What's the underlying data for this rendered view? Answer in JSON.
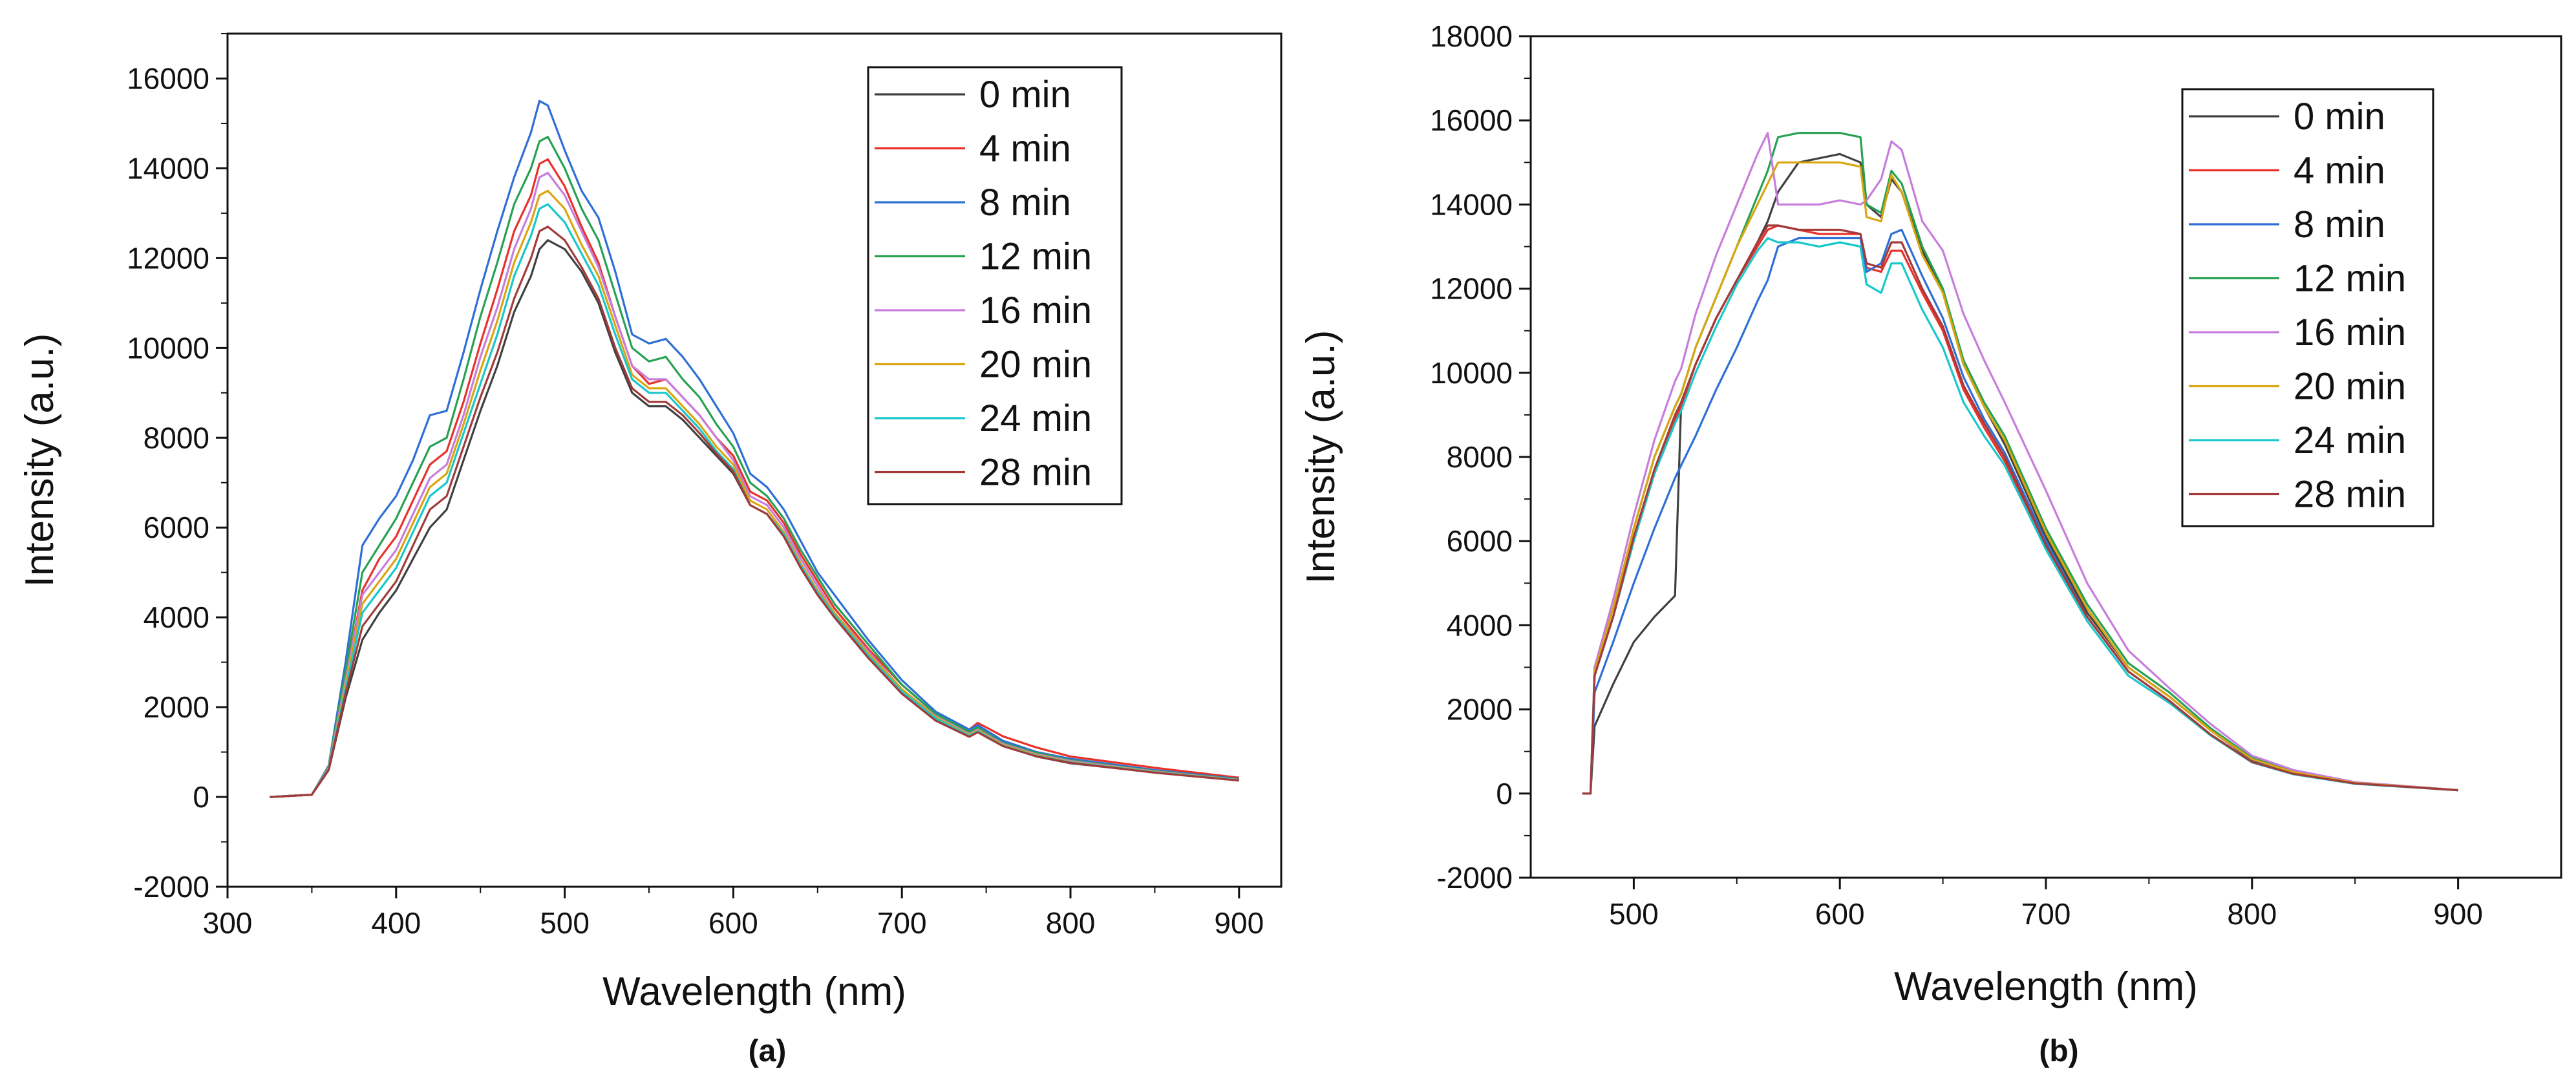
{
  "chart_data": [
    {
      "type": "line",
      "panel_label": "(a)",
      "xlabel": "Wavelength (nm)",
      "ylabel": "Intensity (a.u.)",
      "xlim": [
        300,
        925
      ],
      "ylim": [
        -2000,
        17000
      ],
      "xticks": [
        300,
        400,
        500,
        600,
        700,
        800,
        900
      ],
      "yticks": [
        -2000,
        0,
        2000,
        4000,
        6000,
        8000,
        10000,
        12000,
        14000,
        16000
      ],
      "legend_position": "top-right",
      "x": [
        325,
        350,
        360,
        370,
        380,
        390,
        400,
        410,
        420,
        430,
        440,
        450,
        460,
        470,
        480,
        485,
        490,
        500,
        510,
        520,
        530,
        540,
        550,
        560,
        570,
        580,
        590,
        600,
        610,
        620,
        630,
        640,
        650,
        660,
        680,
        700,
        720,
        740,
        745,
        760,
        780,
        800,
        850,
        900
      ],
      "series": [
        {
          "name": "0 min",
          "color": "#404040",
          "values": [
            0,
            50,
            600,
            2200,
            3500,
            4100,
            4600,
            5300,
            6000,
            6400,
            7500,
            8600,
            9600,
            10800,
            11600,
            12200,
            12400,
            12200,
            11700,
            11000,
            9900,
            9000,
            8700,
            8700,
            8400,
            8000,
            7600,
            7200,
            6500,
            6300,
            5800,
            5100,
            4500,
            4000,
            3100,
            2300,
            1700,
            1350,
            1450,
            1150,
            900,
            750,
            550,
            380
          ]
        },
        {
          "name": "4 min",
          "color": "#e8312a",
          "values": [
            0,
            50,
            650,
            2600,
            4600,
            5300,
            5800,
            6600,
            7400,
            7700,
            8800,
            10100,
            11300,
            12600,
            13400,
            14100,
            14200,
            13600,
            12700,
            11900,
            10700,
            9600,
            9200,
            9300,
            8900,
            8500,
            8000,
            7600,
            6800,
            6600,
            6100,
            5400,
            4800,
            4200,
            3300,
            2500,
            1850,
            1500,
            1650,
            1350,
            1100,
            900,
            650,
            430
          ]
        },
        {
          "name": "8 min",
          "color": "#2e6fd6",
          "values": [
            0,
            50,
            700,
            3000,
            5600,
            6200,
            6700,
            7500,
            8500,
            8600,
            9900,
            11300,
            12600,
            13800,
            14800,
            15500,
            15400,
            14400,
            13500,
            12900,
            11700,
            10300,
            10100,
            10200,
            9800,
            9300,
            8700,
            8100,
            7200,
            6900,
            6400,
            5700,
            5000,
            4500,
            3500,
            2600,
            1900,
            1500,
            1600,
            1250,
            1000,
            850,
            600,
            400
          ]
        },
        {
          "name": "12 min",
          "color": "#27a152",
          "values": [
            0,
            50,
            680,
            2800,
            5000,
            5600,
            6200,
            7000,
            7800,
            8000,
            9300,
            10700,
            11900,
            13200,
            14000,
            14600,
            14700,
            14000,
            13100,
            12400,
            11200,
            10000,
            9700,
            9800,
            9300,
            8900,
            8300,
            7800,
            7000,
            6700,
            6200,
            5500,
            4900,
            4300,
            3400,
            2500,
            1850,
            1450,
            1550,
            1200,
            980,
            820,
            580,
            390
          ]
        },
        {
          "name": "16 min",
          "color": "#c77ddc",
          "values": [
            0,
            50,
            660,
            2600,
            4500,
            5000,
            5500,
            6300,
            7100,
            7400,
            8500,
            9800,
            10900,
            12200,
            13100,
            13800,
            13900,
            13400,
            12600,
            11800,
            10700,
            9600,
            9300,
            9300,
            8900,
            8500,
            8000,
            7500,
            6700,
            6500,
            6000,
            5300,
            4700,
            4100,
            3250,
            2400,
            1800,
            1400,
            1500,
            1180,
            950,
            800,
            570,
            380
          ]
        },
        {
          "name": "20 min",
          "color": "#d9a510",
          "values": [
            0,
            50,
            640,
            2500,
            4300,
            4800,
            5300,
            6100,
            6900,
            7200,
            8300,
            9500,
            10600,
            11900,
            12800,
            13400,
            13500,
            13100,
            12300,
            11600,
            10500,
            9400,
            9100,
            9100,
            8700,
            8300,
            7800,
            7400,
            6600,
            6400,
            5900,
            5200,
            4600,
            4100,
            3200,
            2400,
            1780,
            1380,
            1480,
            1160,
            930,
            780,
            560,
            375
          ]
        },
        {
          "name": "24 min",
          "color": "#17c7cc",
          "values": [
            0,
            50,
            630,
            2400,
            4100,
            4600,
            5100,
            5900,
            6700,
            7000,
            8100,
            9200,
            10300,
            11600,
            12500,
            13100,
            13200,
            12800,
            12100,
            11400,
            10300,
            9300,
            9000,
            9000,
            8600,
            8200,
            7700,
            7300,
            6500,
            6300,
            5850,
            5150,
            4550,
            4050,
            3150,
            2350,
            1750,
            1360,
            1460,
            1140,
            910,
            770,
            550,
            370
          ]
        },
        {
          "name": "28 min",
          "color": "#a33a3a",
          "values": [
            0,
            50,
            610,
            2300,
            3800,
            4300,
            4800,
            5600,
            6400,
            6700,
            7800,
            8900,
            9900,
            11100,
            12000,
            12600,
            12700,
            12400,
            11800,
            11100,
            10000,
            9100,
            8800,
            8800,
            8500,
            8100,
            7650,
            7250,
            6500,
            6300,
            5800,
            5100,
            4500,
            4000,
            3100,
            2300,
            1700,
            1340,
            1440,
            1130,
            900,
            760,
            540,
            365
          ]
        }
      ]
    },
    {
      "type": "line",
      "panel_label": "(b)",
      "xlabel": "Wavelength (nm)",
      "ylabel": "Intensity (a.u.)",
      "xlim": [
        450,
        950
      ],
      "ylim": [
        -2000,
        18000
      ],
      "xticks": [
        500,
        600,
        700,
        800,
        900
      ],
      "yticks": [
        -2000,
        0,
        2000,
        4000,
        6000,
        8000,
        10000,
        12000,
        14000,
        16000,
        18000
      ],
      "legend_position": "top-right",
      "x": [
        475,
        479,
        481,
        490,
        500,
        510,
        520,
        523,
        530,
        540,
        550,
        560,
        565,
        570,
        580,
        590,
        600,
        610,
        613,
        620,
        625,
        630,
        640,
        650,
        660,
        670,
        680,
        700,
        720,
        740,
        760,
        780,
        800,
        820,
        850,
        900
      ],
      "series": [
        {
          "name": "0 min",
          "color": "#404040",
          "values": [
            0,
            0,
            1600,
            2600,
            3600,
            4200,
            4700,
            9300,
            10200,
            11300,
            12200,
            13100,
            13600,
            14300,
            15000,
            15100,
            15200,
            15000,
            14000,
            13700,
            14600,
            14300,
            12900,
            11900,
            10200,
            9200,
            8300,
            6100,
            4300,
            3000,
            2300,
            1500,
            800,
            500,
            250,
            80
          ]
        },
        {
          "name": "4 min",
          "color": "#e8312a",
          "values": [
            0,
            0,
            2800,
            4200,
            6000,
            7600,
            8900,
            9200,
            10200,
            11300,
            12200,
            13000,
            13400,
            13500,
            13400,
            13300,
            13300,
            13300,
            12500,
            12400,
            12900,
            12900,
            11900,
            11000,
            9600,
            8700,
            7900,
            5900,
            4200,
            2900,
            2200,
            1400,
            750,
            470,
            240,
            80
          ]
        },
        {
          "name": "8 min",
          "color": "#2e6fd6",
          "values": [
            0,
            0,
            2400,
            3600,
            5000,
            6300,
            7500,
            7800,
            8500,
            9600,
            10600,
            11700,
            12200,
            13000,
            13200,
            13200,
            13200,
            13200,
            12400,
            12600,
            13300,
            13400,
            12300,
            11300,
            9900,
            8900,
            8100,
            6000,
            4200,
            2900,
            2200,
            1400,
            760,
            480,
            240,
            80
          ]
        },
        {
          "name": "12 min",
          "color": "#27a152",
          "values": [
            0,
            0,
            3000,
            4400,
            6300,
            8000,
            9200,
            9500,
            10600,
            11800,
            13000,
            14200,
            14800,
            15600,
            15700,
            15700,
            15700,
            15600,
            14000,
            13800,
            14800,
            14500,
            13000,
            12000,
            10300,
            9300,
            8500,
            6300,
            4500,
            3100,
            2400,
            1550,
            850,
            530,
            260,
            85
          ]
        },
        {
          "name": "16 min",
          "color": "#c77ddc",
          "values": [
            0,
            0,
            3000,
            4600,
            6600,
            8400,
            9800,
            10100,
            11400,
            12800,
            14000,
            15200,
            15700,
            14000,
            14000,
            14000,
            14100,
            14000,
            14100,
            14600,
            15500,
            15300,
            13600,
            12900,
            11400,
            10300,
            9300,
            7200,
            5000,
            3400,
            2500,
            1650,
            900,
            560,
            270,
            85
          ]
        },
        {
          "name": "20 min",
          "color": "#d9a510",
          "values": [
            0,
            0,
            2900,
            4400,
            6300,
            8000,
            9200,
            9500,
            10600,
            11800,
            13000,
            14000,
            14500,
            15000,
            15000,
            15000,
            15000,
            14900,
            13700,
            13600,
            14700,
            14300,
            12800,
            11900,
            10200,
            9200,
            8400,
            6200,
            4400,
            3000,
            2300,
            1500,
            820,
            510,
            250,
            82
          ]
        },
        {
          "name": "24 min",
          "color": "#17c7cc",
          "values": [
            0,
            0,
            2800,
            4200,
            6000,
            7600,
            8800,
            9100,
            10000,
            11100,
            12100,
            12900,
            13200,
            13100,
            13100,
            13000,
            13100,
            13000,
            12100,
            11900,
            12600,
            12600,
            11500,
            10600,
            9300,
            8500,
            7800,
            5800,
            4100,
            2800,
            2150,
            1380,
            740,
            460,
            230,
            78
          ]
        },
        {
          "name": "28 min",
          "color": "#a33a3a",
          "values": [
            0,
            0,
            2800,
            4200,
            6100,
            7700,
            9000,
            9300,
            10200,
            11300,
            12200,
            13100,
            13500,
            13500,
            13400,
            13400,
            13400,
            13300,
            12600,
            12500,
            13100,
            13100,
            12000,
            11100,
            9700,
            8800,
            8000,
            5900,
            4200,
            2900,
            2200,
            1400,
            750,
            470,
            240,
            80
          ]
        }
      ]
    }
  ]
}
